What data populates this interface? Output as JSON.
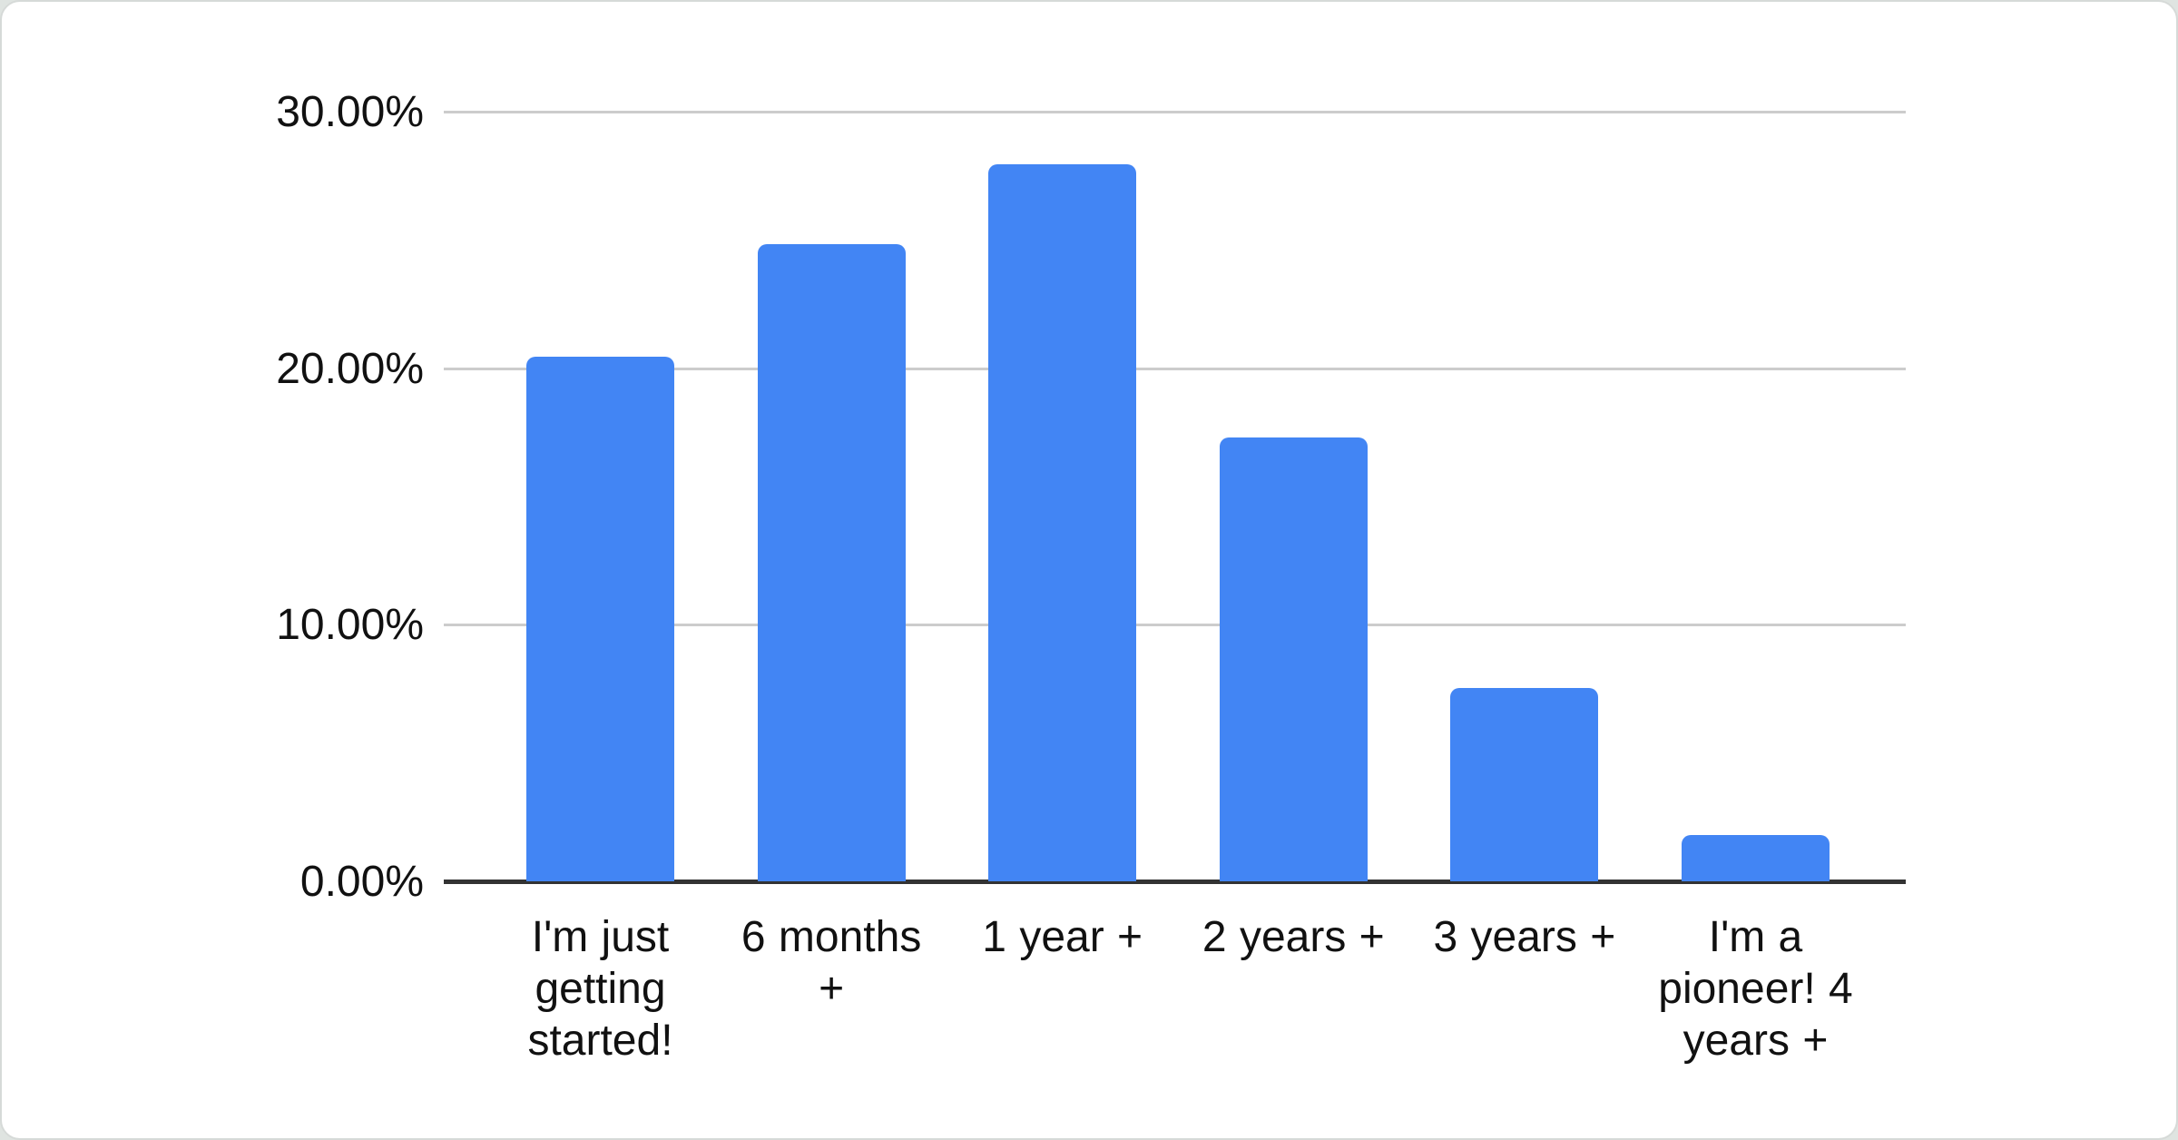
{
  "chart_data": {
    "type": "bar",
    "title": "",
    "xlabel": "",
    "ylabel": "",
    "categories": [
      "I'm just getting started!",
      "6 months +",
      "1 year +",
      "2 years +",
      "3 years +",
      "I'm a pioneer! 4 years +"
    ],
    "values": [
      20.45,
      24.85,
      27.95,
      17.3,
      7.55,
      1.8
    ],
    "ylim": [
      0,
      30
    ],
    "ytick_labels": [
      "30.00%",
      "20.00%",
      "10.00%",
      "0.00%"
    ],
    "grid": true,
    "legend_position": "none",
    "bar_color": "#4285f4",
    "gridline_color": "#cccccc",
    "axis_line_color": "#333333",
    "label_color": "#111111"
  }
}
